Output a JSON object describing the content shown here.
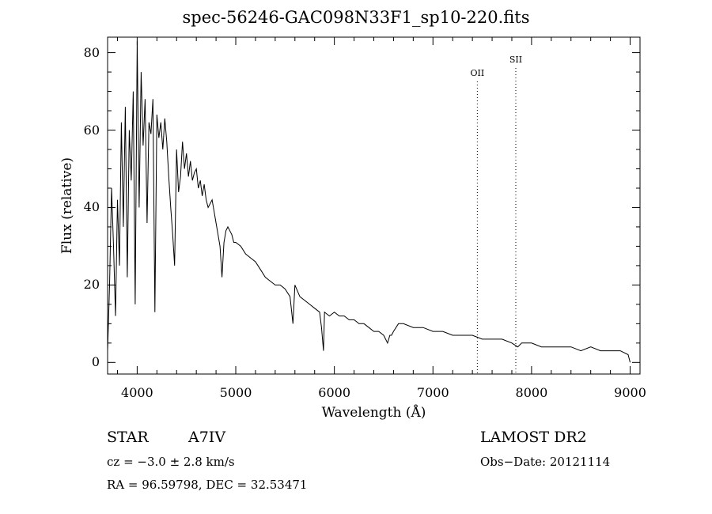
{
  "chart_data": {
    "type": "line",
    "title": "spec-56246-GAC098N33F1_sp10-220.fits",
    "xlabel": "Wavelength (Å)",
    "ylabel": "Flux (relative)",
    "xlim": [
      3700,
      9100
    ],
    "ylim": [
      -3,
      84
    ],
    "x_ticks": [
      4000,
      5000,
      6000,
      7000,
      8000,
      9000
    ],
    "y_ticks": [
      0,
      20,
      40,
      60,
      80
    ],
    "grid": false,
    "series": [
      {
        "x": [
          3700,
          3720,
          3740,
          3760,
          3780,
          3800,
          3820,
          3840,
          3860,
          3880,
          3900,
          3920,
          3940,
          3960,
          3980,
          4000,
          4020,
          4040,
          4060,
          4080,
          4100,
          4120,
          4140,
          4160,
          4180,
          4200,
          4220,
          4240,
          4260,
          4280,
          4300,
          4320,
          4340,
          4360,
          4380,
          4400,
          4420,
          4440,
          4460,
          4480,
          4500,
          4520,
          4540,
          4560,
          4580,
          4600,
          4620,
          4640,
          4660,
          4680,
          4700,
          4720,
          4740,
          4760,
          4780,
          4800,
          4820,
          4840,
          4860,
          4880,
          4900,
          4920,
          4940,
          4960,
          4980,
          5000,
          5050,
          5100,
          5150,
          5200,
          5250,
          5300,
          5350,
          5400,
          5450,
          5500,
          5550,
          5580,
          5600,
          5650,
          5700,
          5750,
          5800,
          5850,
          5870,
          5890,
          5900,
          5950,
          6000,
          6050,
          6100,
          6150,
          6200,
          6250,
          6300,
          6350,
          6400,
          6450,
          6500,
          6540,
          6563,
          6580,
          6600,
          6650,
          6700,
          6800,
          6900,
          7000,
          7100,
          7200,
          7300,
          7400,
          7500,
          7600,
          7700,
          7800,
          7860,
          7900,
          8000,
          8100,
          8200,
          8300,
          8400,
          8500,
          8600,
          8700,
          8800,
          8900,
          8980,
          9000
        ],
        "y": [
          3,
          20,
          45,
          30,
          12,
          42,
          25,
          62,
          35,
          66,
          22,
          60,
          47,
          70,
          15,
          83,
          40,
          75,
          56,
          68,
          36,
          62,
          59,
          68,
          13,
          64,
          58,
          62,
          55,
          63,
          57,
          48,
          40,
          33,
          25,
          55,
          44,
          48,
          57,
          50,
          54,
          48,
          52,
          47,
          49,
          50,
          45,
          47,
          43,
          46,
          42,
          40,
          41,
          42,
          39,
          36,
          33,
          30,
          22,
          31,
          34,
          35,
          34,
          33,
          31,
          31,
          30,
          28,
          27,
          26,
          24,
          22,
          21,
          20,
          20,
          19,
          17,
          10,
          20,
          17,
          16,
          15,
          14,
          13,
          9,
          3,
          13,
          12,
          13,
          12,
          12,
          11,
          11,
          10,
          10,
          9,
          8,
          8,
          7,
          5,
          7,
          7,
          8,
          10,
          10,
          9,
          9,
          8,
          8,
          7,
          7,
          7,
          6,
          6,
          6,
          5,
          4,
          5,
          5,
          4,
          4,
          4,
          4,
          3,
          4,
          3,
          3,
          3,
          2,
          0
        ]
      }
    ],
    "annotations": [
      {
        "label": "OII",
        "x": 7450
      },
      {
        "label": "SII",
        "x": 7840
      }
    ]
  },
  "info": {
    "object_type": "STAR",
    "subclass": "A7IV",
    "cz": "cz = −3.0 ± 2.8 km/s",
    "coords": "RA =  96.59798, DEC =  32.53471",
    "survey": "LAMOST DR2",
    "obs_date": "Obs−Date: 20121114"
  }
}
